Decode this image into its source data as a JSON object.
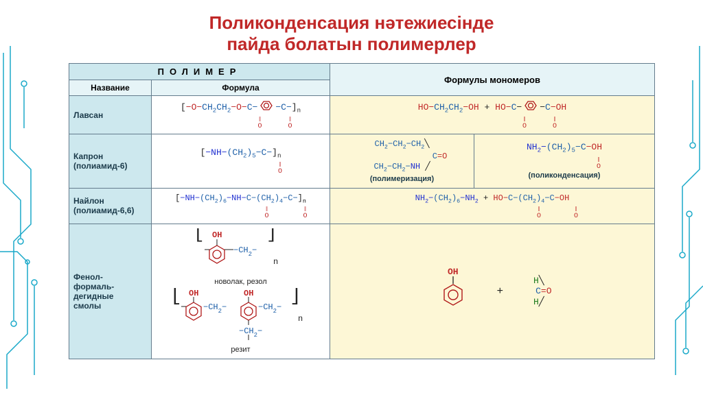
{
  "title_color": "#c02828",
  "circuit_color": "#1aa9c9",
  "border_color": "#637b8c",
  "colors": {
    "header_bg": "#cde8ee",
    "header2_bg": "#e6f4f7",
    "name_bg": "#cde8ee",
    "mono_bg": "#fdf7d6",
    "atom_O": "#c02828",
    "atom_N": "#2030d0",
    "atom_C": "#1d5fa8",
    "atom_H": "#1d7a1d",
    "bracket": "#222222",
    "ring": "#b01818"
  },
  "title": "Поликонденсация нәтежиесінде\nпайда болатын полимерлер",
  "headers": {
    "polymer": "ПОЛИМЕР",
    "name": "Название",
    "formula": "Формула",
    "monomers": "Формулы мономеров"
  },
  "rows": [
    {
      "name": "Лавсан",
      "formula_html": "[−O−CH₂CH₂−O−C−(benz)−C−]ₙ with O double bonds under each C",
      "monomer_html": "HO−CH₂CH₂−OH + HO−C−(benz)−C−OH",
      "sublabels": []
    },
    {
      "name": "Капрон\n(полиамид-6)",
      "formula_html": "[−NH−(CH₂)₅−C−]ₙ with O dbl",
      "monomer_left": "CH₂−CH₂−CH₂\\ C=O\nCH₂−CH₂−NH/",
      "monomer_left_label": "(полимеризация)",
      "monomer_right": "NH₂−(CH₂)₅−C−OH",
      "monomer_right_label": "(поликонденсация)"
    },
    {
      "name": "Найлон\n(полиамид-6,6)",
      "formula_html": "[−NH−(CH₂)₆−NH−C−(CH₂)₄−C−]ₙ",
      "monomer_html": "NH₂−(CH₂)₆−NH₂ + HO−C−(CH₂)₄−C−OH"
    },
    {
      "name": "Фенол-\nформаль-\nдегидные\nсмолы",
      "formula_top_label": "новолак, резол",
      "formula_bottom_label": "резит",
      "monomer_plus": "+",
      "monomer_formaldehyde": "H\\C=O\nH/"
    }
  ]
}
